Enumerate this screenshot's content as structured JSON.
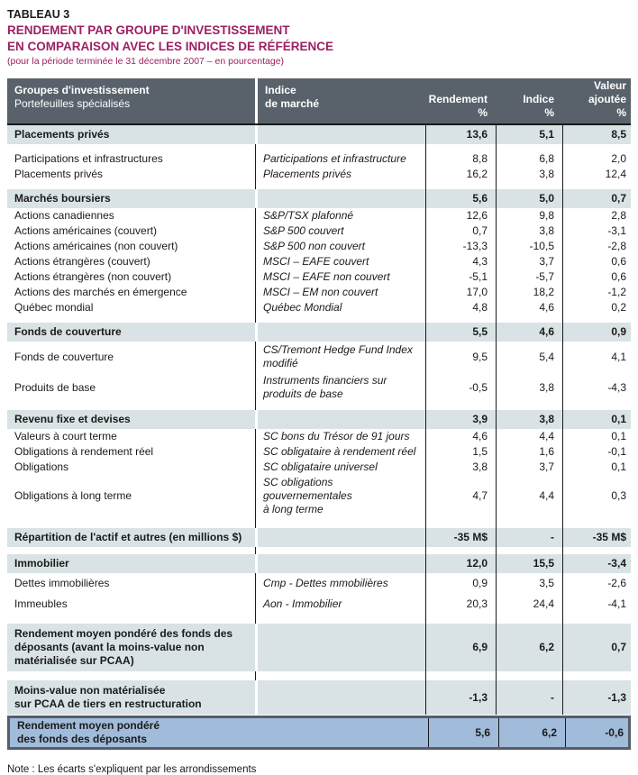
{
  "title": {
    "label": "TABLEAU 3",
    "heading_line1": "RENDEMENT PAR GROUPE D'INVESTISSEMENT",
    "heading_line2": "EN COMPARAISON AVEC LES INDICES DE RÉFÉRENCE",
    "subtitle": "(pour la période terminée le 31 décembre 2007 – en pourcentage)"
  },
  "colors": {
    "heading": "#9c2162",
    "header_bg": "#59626b",
    "section_bg": "#d9e3e5",
    "total_bg": "#a1bbda",
    "total_border": "#565e68",
    "line": "#1a1a1a"
  },
  "table": {
    "header": {
      "col1_line1": "Groupes d'investissement",
      "col1_line2": "Portefeuilles spécialisés",
      "col2_line1": "Indice",
      "col2_line2": "de marché",
      "col3_line1": "Rendement",
      "col3_line2": "%",
      "col4_line1": "Indice",
      "col4_line2": "%",
      "col5_line1": "Valeur",
      "col5_line2": "ajoutée",
      "col5_line3": "%"
    },
    "rows": [
      {
        "type": "section",
        "name": "Placements privés",
        "rendement": "13,6",
        "indice": "5,1",
        "valeur": "8,5"
      },
      {
        "type": "spacer"
      },
      {
        "type": "item",
        "name": "Participations et infrastructures",
        "index": "Participations et infrastructure",
        "rendement": "8,8",
        "indice": "6,8",
        "valeur": "2,0"
      },
      {
        "type": "item",
        "name": "Placements privés",
        "index": "Placements privés",
        "rendement": "16,2",
        "indice": "3,8",
        "valeur": "12,4"
      },
      {
        "type": "spacer"
      },
      {
        "type": "section",
        "name": "Marchés boursiers",
        "rendement": "5,6",
        "indice": "5,0",
        "valeur": "0,7"
      },
      {
        "type": "item",
        "name": "Actions canadiennes",
        "index": "S&P/TSX plafonné",
        "rendement": "12,6",
        "indice": "9,8",
        "valeur": "2,8"
      },
      {
        "type": "item",
        "name": "Actions américaines (couvert)",
        "index": "S&P 500 couvert",
        "rendement": "0,7",
        "indice": "3,8",
        "valeur": "-3,1"
      },
      {
        "type": "item",
        "name": "Actions américaines (non couvert)",
        "index": "S&P 500 non couvert",
        "rendement": "-13,3",
        "indice": "-10,5",
        "valeur": "-2,8"
      },
      {
        "type": "item",
        "name": "Actions étrangères (couvert)",
        "index": "MSCI – EAFE couvert",
        "rendement": "4,3",
        "indice": "3,7",
        "valeur": "0,6"
      },
      {
        "type": "item",
        "name": "Actions étrangères (non couvert)",
        "index": "MSCI – EAFE non couvert",
        "rendement": "-5,1",
        "indice": "-5,7",
        "valeur": "0,6"
      },
      {
        "type": "item",
        "name": "Actions des marchés en émergence",
        "index": "MSCI – EM non couvert",
        "rendement": "17,0",
        "indice": "18,2",
        "valeur": "-1,2"
      },
      {
        "type": "item",
        "name": "Québec mondial",
        "index": "Québec Mondial",
        "rendement": "4,8",
        "indice": "4,6",
        "valeur": "0,2"
      },
      {
        "type": "spacer"
      },
      {
        "type": "section",
        "name": "Fonds de couverture",
        "rendement": "5,5",
        "indice": "4,6",
        "valeur": "0,9"
      },
      {
        "type": "item",
        "tall": true,
        "name": "Fonds de couverture",
        "index_lines": [
          "CS/Tremont Hedge Fund Index",
          "modifié"
        ],
        "rendement": "9,5",
        "indice": "5,4",
        "valeur": "4,1"
      },
      {
        "type": "item",
        "tall": true,
        "name": "Produits de base",
        "index_lines": [
          "Instruments financiers sur",
          "produits de base"
        ],
        "rendement": "-0,5",
        "indice": "3,8",
        "valeur": "-4,3"
      },
      {
        "type": "spacer"
      },
      {
        "type": "section",
        "name": "Revenu fixe et devises",
        "rendement": "3,9",
        "indice": "3,8",
        "valeur": "0,1"
      },
      {
        "type": "item",
        "name": "Valeurs à court terme",
        "index": "SC bons du Trésor de 91 jours",
        "rendement": "4,6",
        "indice": "4,4",
        "valeur": "0,1"
      },
      {
        "type": "item",
        "name": "Obligations à rendement réel",
        "index": "SC obligataire à rendement réel",
        "rendement": "1,5",
        "indice": "1,6",
        "valeur": "-0,1"
      },
      {
        "type": "item",
        "name": "Obligations",
        "index": "SC obligataire universel",
        "rendement": "3,8",
        "indice": "3,7",
        "valeur": "0,1"
      },
      {
        "type": "item",
        "tall": true,
        "name": "Obligations à long terme",
        "index_lines": [
          "SC obligations gouvernementales",
          "à long terme"
        ],
        "rendement": "4,7",
        "indice": "4,4",
        "valeur": "0,3"
      },
      {
        "type": "spacer",
        "h": 12
      },
      {
        "type": "section",
        "name": "Répartition de l'actif et autres (en millions $)",
        "rendement": "-35 M$",
        "indice": "-",
        "valeur": "-35 M$"
      },
      {
        "type": "spacer"
      },
      {
        "type": "section",
        "name": "Immobilier",
        "rendement": "12,0",
        "indice": "15,5",
        "valeur": "-3,4"
      },
      {
        "type": "item",
        "spaced": true,
        "name": "Dettes immobilières",
        "index": "Cmp - Dettes mmobilières",
        "rendement": "0,9",
        "indice": "3,5",
        "valeur": "-2,6"
      },
      {
        "type": "item",
        "spaced": true,
        "name": "Immeubles",
        "index": "Aon - Immobilier",
        "rendement": "20,3",
        "indice": "24,4",
        "valeur": "-4,1"
      },
      {
        "type": "spacer",
        "h": 10
      },
      {
        "type": "section",
        "multiline": true,
        "lines": [
          "Rendement moyen pondéré des fonds des",
          "déposants (avant la moins-value non",
          "matérialisée sur PCAA)"
        ],
        "rendement": "6,9",
        "indice": "6,2",
        "valeur": "0,7"
      },
      {
        "type": "spacer",
        "h": 10
      },
      {
        "type": "section",
        "multiline": true,
        "lines": [
          "Moins-value non matérialisée",
          "sur PCAA de tiers en restructuration"
        ],
        "rendement": "-1,3",
        "indice": "-",
        "valeur": "-1,3"
      },
      {
        "type": "total",
        "lines": [
          "Rendement moyen pondéré",
          "des fonds des déposants"
        ],
        "rendement": "5,6",
        "indice": "6,2",
        "valeur": "-0,6"
      }
    ]
  },
  "note": "Note : Les écarts s'expliquent par les arrondissements"
}
